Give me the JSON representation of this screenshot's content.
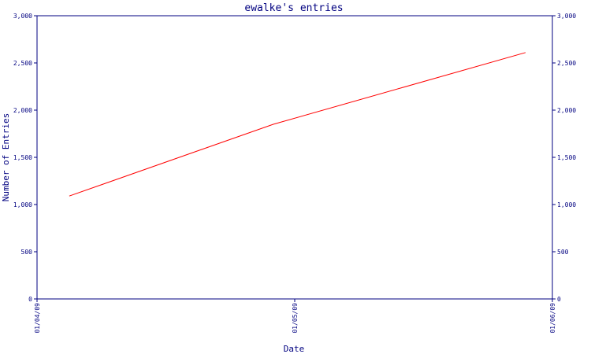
{
  "chart_data": {
    "type": "line",
    "title": "ewalke's entries",
    "xlabel": "Date",
    "ylabel": "Number of Entries",
    "x_ticks": [
      "01/04/09",
      "01/05/09",
      "01/06/09"
    ],
    "y_ticks": [
      "0",
      "500",
      "1,000",
      "1,500",
      "2,000",
      "2,500",
      "3,000"
    ],
    "ylim": [
      0,
      3000
    ],
    "xlim": [
      "2009-01-04",
      "2009-01-06"
    ],
    "grid": false,
    "y_axis_right": true,
    "series": [
      {
        "color": "#ff0000",
        "points": [
          {
            "x": "2009-01-04 03:00",
            "y": 1090
          },
          {
            "x": "2009-01-04 22:00",
            "y": 1850
          },
          {
            "x": "2009-01-05 21:30",
            "y": 2610
          }
        ]
      }
    ],
    "colors": {
      "axis": "#000080",
      "text": "#000080",
      "line": "#ff0000"
    }
  }
}
